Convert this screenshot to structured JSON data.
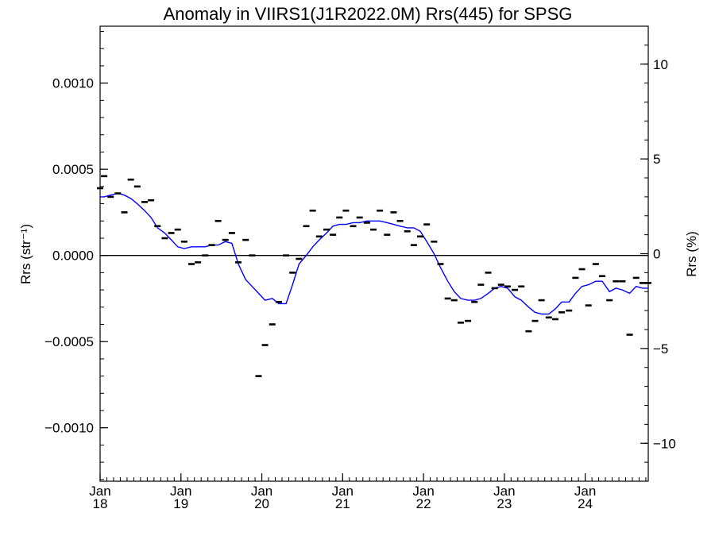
{
  "chart_data": {
    "type": "scatter",
    "title": "Anomaly in VIIRS1(J1R2022.0M) Rrs(445) for SPSG",
    "ylabel": "Rrs (str⁻¹)",
    "y2label": "Rrs (%)",
    "xlabel": "",
    "xlim": [
      2018.0,
      2024.78
    ],
    "ylim": [
      -0.00131,
      0.00133
    ],
    "y2lim": [
      -12.0,
      12.0
    ],
    "zero_line": true,
    "grid": false,
    "legend": "none",
    "colors": {
      "points": "#000000",
      "smooth_line": "#0000ff",
      "axes": "#000000"
    },
    "x_ticks": [
      {
        "value": 2018.0,
        "month": "Jan",
        "year": "18"
      },
      {
        "value": 2019.0,
        "month": "Jan",
        "year": "19"
      },
      {
        "value": 2020.0,
        "month": "Jan",
        "year": "20"
      },
      {
        "value": 2021.0,
        "month": "Jan",
        "year": "21"
      },
      {
        "value": 2022.0,
        "month": "Jan",
        "year": "22"
      },
      {
        "value": 2023.0,
        "month": "Jan",
        "year": "23"
      },
      {
        "value": 2024.0,
        "month": "Jan",
        "year": "24"
      }
    ],
    "y_ticks": [
      {
        "value": 0.001,
        "label": "0.0010"
      },
      {
        "value": 0.0005,
        "label": "0.0005"
      },
      {
        "value": 0.0,
        "label": "0.0000"
      },
      {
        "value": -0.0005,
        "label": "−0.0005"
      },
      {
        "value": -0.001,
        "label": "−0.0010"
      }
    ],
    "y2_ticks": [
      {
        "value": 10,
        "label": "10"
      },
      {
        "value": 5,
        "label": "5"
      },
      {
        "value": 0,
        "label": "0"
      },
      {
        "value": -5,
        "label": "−5"
      },
      {
        "value": -10,
        "label": "−10"
      }
    ],
    "series": [
      {
        "kind": "points",
        "x": [
          2018.0,
          2018.05,
          2018.13,
          2018.22,
          2018.3,
          2018.38,
          2018.46,
          2018.55,
          2018.63,
          2018.71,
          2018.8,
          2018.88,
          2018.96,
          2019.04,
          2019.13,
          2019.21,
          2019.3,
          2019.38,
          2019.46,
          2019.55,
          2019.63,
          2019.71,
          2019.8,
          2019.88,
          2019.96,
          2020.04,
          2020.13,
          2020.21,
          2020.3,
          2020.38,
          2020.46,
          2020.55,
          2020.63,
          2020.71,
          2020.8,
          2020.88,
          2020.96,
          2021.04,
          2021.13,
          2021.21,
          2021.3,
          2021.38,
          2021.46,
          2021.55,
          2021.63,
          2021.71,
          2021.8,
          2021.88,
          2021.96,
          2022.04,
          2022.13,
          2022.21,
          2022.3,
          2022.38,
          2022.46,
          2022.55,
          2022.63,
          2022.71,
          2022.8,
          2022.88,
          2022.96,
          2023.04,
          2023.13,
          2023.21,
          2023.3,
          2023.38,
          2023.46,
          2023.55,
          2023.63,
          2023.71,
          2023.8,
          2023.88,
          2023.96,
          2024.04,
          2024.13,
          2024.21,
          2024.3,
          2024.38,
          2024.46,
          2024.55,
          2024.63,
          2024.71,
          2024.78
        ],
        "y": [
          0.00039,
          0.00046,
          0.00034,
          0.00036,
          0.00025,
          0.00044,
          0.0004,
          0.00031,
          0.00032,
          0.00017,
          0.0001,
          0.00013,
          0.00015,
          8e-05,
          -5e-05,
          -4e-05,
          0.0,
          6e-05,
          0.0002,
          9e-05,
          0.00013,
          -4e-05,
          9e-05,
          0.0,
          -0.0007,
          -0.00052,
          -0.0004,
          -0.00027,
          0.0,
          -0.0001,
          -2e-05,
          0.00017,
          0.00026,
          0.00011,
          0.00015,
          0.00012,
          0.00022,
          0.00026,
          0.00017,
          0.00022,
          0.00019,
          0.00015,
          0.00026,
          0.00012,
          0.00025,
          0.0002,
          0.00014,
          6e-05,
          0.00011,
          0.00018,
          8e-05,
          -5e-05,
          -0.00025,
          -0.00026,
          -0.00039,
          -0.00038,
          -0.00027,
          -0.00017,
          -0.0001,
          -0.00019,
          -0.00017,
          -0.00018,
          -0.0002,
          -0.00018,
          -0.00044,
          -0.00038,
          -0.00026,
          -0.00036,
          -0.00037,
          -0.00033,
          -0.00032,
          -0.00013,
          -8e-05,
          -0.00029,
          -5e-05,
          -0.00012,
          -0.00026,
          -0.00015,
          -0.00015,
          -0.00046,
          -0.00013,
          -0.00016,
          -0.00016
        ]
      },
      {
        "kind": "line",
        "x": [
          2018.0,
          2018.05,
          2018.13,
          2018.22,
          2018.3,
          2018.38,
          2018.46,
          2018.55,
          2018.63,
          2018.71,
          2018.8,
          2018.88,
          2018.96,
          2019.04,
          2019.13,
          2019.21,
          2019.3,
          2019.38,
          2019.46,
          2019.55,
          2019.63,
          2019.71,
          2019.8,
          2019.88,
          2019.96,
          2020.04,
          2020.13,
          2020.21,
          2020.3,
          2020.38,
          2020.46,
          2020.55,
          2020.63,
          2020.71,
          2020.8,
          2020.88,
          2020.96,
          2021.04,
          2021.13,
          2021.21,
          2021.3,
          2021.38,
          2021.46,
          2021.55,
          2021.63,
          2021.71,
          2021.8,
          2021.88,
          2021.96,
          2022.04,
          2022.13,
          2022.21,
          2022.3,
          2022.38,
          2022.46,
          2022.55,
          2022.63,
          2022.71,
          2022.8,
          2022.88,
          2022.96,
          2023.04,
          2023.13,
          2023.21,
          2023.3,
          2023.38,
          2023.46,
          2023.55,
          2023.63,
          2023.71,
          2023.8,
          2023.88,
          2023.96,
          2024.04,
          2024.13,
          2024.21,
          2024.3,
          2024.38,
          2024.46,
          2024.55,
          2024.63,
          2024.71,
          2024.78
        ],
        "y": [
          0.00034,
          0.00034,
          0.00035,
          0.00036,
          0.00035,
          0.00033,
          0.0003,
          0.00026,
          0.00022,
          0.00016,
          0.00013,
          9e-05,
          5e-05,
          4e-05,
          5e-05,
          5e-05,
          5e-05,
          6e-05,
          6e-05,
          8e-05,
          7e-05,
          -5e-05,
          -0.00014,
          -0.00018,
          -0.00022,
          -0.00026,
          -0.00025,
          -0.00028,
          -0.00028,
          -0.00017,
          -5e-05,
          0.0,
          5e-05,
          9e-05,
          0.00013,
          0.00017,
          0.00018,
          0.00018,
          0.00019,
          0.00019,
          0.0002,
          0.0002,
          0.0002,
          0.00019,
          0.00018,
          0.00017,
          0.00016,
          0.00016,
          0.00014,
          8e-05,
          1e-05,
          -7e-05,
          -0.00015,
          -0.00021,
          -0.00025,
          -0.00026,
          -0.00026,
          -0.00025,
          -0.00022,
          -0.00019,
          -0.00018,
          -0.00019,
          -0.00024,
          -0.00026,
          -0.0003,
          -0.00033,
          -0.00034,
          -0.00034,
          -0.00031,
          -0.00027,
          -0.00027,
          -0.00022,
          -0.00018,
          -0.00017,
          -0.00015,
          -0.00015,
          -0.00021,
          -0.00019,
          -0.0002,
          -0.00022,
          -0.00018,
          -0.00019,
          -0.00019
        ]
      }
    ]
  }
}
